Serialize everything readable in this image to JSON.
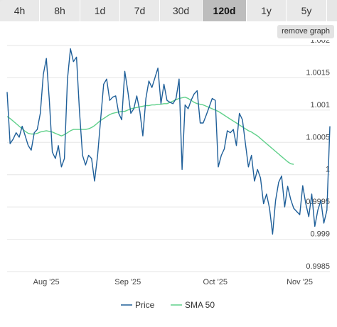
{
  "tabs": [
    {
      "label": "4h",
      "active": false
    },
    {
      "label": "8h",
      "active": false
    },
    {
      "label": "1d",
      "active": false
    },
    {
      "label": "7d",
      "active": false
    },
    {
      "label": "30d",
      "active": false
    },
    {
      "label": "120d",
      "active": true
    },
    {
      "label": "1y",
      "active": false
    },
    {
      "label": "5y",
      "active": false
    }
  ],
  "remove_graph_label": "remove graph",
  "colors": {
    "price": "#1f5f99",
    "sma": "#5fd08a",
    "grid": "#e6e6e6",
    "active_tab": "#bdbdbd"
  },
  "chart_data": {
    "type": "line",
    "title": "",
    "xlabel": "",
    "ylabel": "",
    "ylim": [
      0.9985,
      1.002
    ],
    "y_ticks": [
      "0.9985",
      "0.999",
      "0.9995",
      "1",
      "1.0005",
      "1.001",
      "1.0015",
      "1.002"
    ],
    "x_ticks": [
      "Aug '25",
      "Sep '25",
      "Oct '25",
      "Nov '25"
    ],
    "x_tick_index": [
      13,
      40,
      69,
      97
    ],
    "grid": true,
    "legend": "bottom-center",
    "series": [
      {
        "name": "Price",
        "values": [
          1.00128,
          1.00048,
          1.00055,
          1.00065,
          1.00058,
          1.00075,
          1.0006,
          1.00045,
          1.00038,
          1.00065,
          1.0007,
          1.00095,
          1.00155,
          1.0018,
          1.00115,
          1.00035,
          1.00025,
          1.00045,
          1.00012,
          1.00025,
          1.00148,
          1.00195,
          1.00175,
          1.00182,
          1.00098,
          1.0003,
          1.00015,
          1.0003,
          1.00025,
          0.9999,
          1.0003,
          1.00085,
          1.0014,
          1.00148,
          1.00115,
          1.0012,
          1.00122,
          1.00095,
          1.00085,
          1.0016,
          1.0013,
          1.00095,
          1.00102,
          1.00122,
          1.00098,
          1.0006,
          1.00118,
          1.00145,
          1.00135,
          1.0015,
          1.00165,
          1.0011,
          1.0014,
          1.00115,
          1.00112,
          1.0011,
          1.00118,
          1.00148,
          1.00008,
          1.00108,
          1.00102,
          1.00115,
          1.00125,
          1.0013,
          1.0008,
          1.0008,
          1.00092,
          1.00105,
          1.00118,
          1.00115,
          1.00012,
          1.0003,
          1.0004,
          1.00068,
          1.00065,
          1.0007,
          1.00045,
          1.00095,
          1.00085,
          1.00048,
          1.00012,
          1.0003,
          0.9999,
          1.00008,
          0.99995,
          0.99955,
          0.9997,
          0.99948,
          0.99908,
          0.9996,
          0.99988,
          0.99998,
          0.9995,
          0.99982,
          0.99962,
          0.99948,
          0.99943,
          0.99938,
          0.99983,
          0.99955,
          0.99935,
          0.9997,
          0.9992,
          0.99945,
          0.9996,
          0.99925,
          0.99945,
          1.00075
        ]
      },
      {
        "name": "SMA 50",
        "values": [
          1.0009,
          1.00087,
          1.00083,
          1.00079,
          1.00075,
          1.00071,
          1.00067,
          1.00064,
          1.00063,
          1.00063,
          1.00064,
          1.00066,
          1.00067,
          1.00068,
          1.00067,
          1.00066,
          1.00064,
          1.00062,
          1.0006,
          1.00062,
          1.00065,
          1.00068,
          1.0007,
          1.0007,
          1.0007,
          1.0007,
          1.0007,
          1.00071,
          1.00073,
          1.00076,
          1.0008,
          1.00084,
          1.00087,
          1.0009,
          1.00093,
          1.00095,
          1.00096,
          1.00097,
          1.00098,
          1.00098,
          1.001,
          1.00102,
          1.00103,
          1.00104,
          1.00105,
          1.00106,
          1.00107,
          1.00107,
          1.00108,
          1.00108,
          1.00109,
          1.00109,
          1.0011,
          1.0011,
          1.00112,
          1.00114,
          1.00116,
          1.00118,
          1.00119,
          1.0012,
          1.00118,
          1.00115,
          1.00112,
          1.0011,
          1.00109,
          1.00108,
          1.00106,
          1.00104,
          1.00102,
          1.001,
          1.00098,
          1.00095,
          1.00092,
          1.00089,
          1.00086,
          1.00083,
          1.0008,
          1.00077,
          1.00074,
          1.00071,
          1.00068,
          1.00066,
          1.00063,
          1.0006,
          1.00056,
          1.00052,
          1.00048,
          1.00044,
          1.0004,
          1.00036,
          1.00032,
          1.00028,
          1.00024,
          1.0002,
          1.00017,
          1.00016
        ]
      }
    ]
  }
}
